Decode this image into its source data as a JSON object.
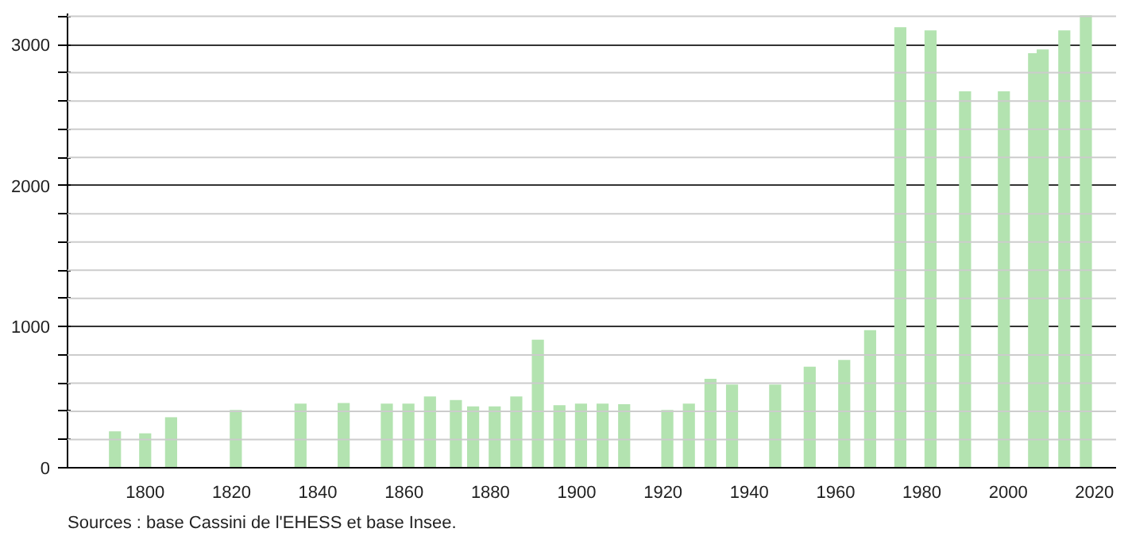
{
  "chart_data": {
    "type": "bar",
    "x": [
      1793,
      1800,
      1806,
      1821,
      1836,
      1846,
      1856,
      1861,
      1866,
      1872,
      1876,
      1881,
      1886,
      1891,
      1896,
      1901,
      1906,
      1911,
      1921,
      1926,
      1931,
      1936,
      1946,
      1954,
      1962,
      1968,
      1975,
      1982,
      1990,
      1999,
      2006,
      2008,
      2013,
      2018
    ],
    "values": [
      258,
      244,
      358,
      410,
      454,
      459,
      454,
      454,
      505,
      480,
      435,
      435,
      505,
      908,
      443,
      455,
      455,
      450,
      410,
      455,
      630,
      590,
      590,
      716,
      764,
      975,
      3123,
      3100,
      2669,
      2669,
      2938,
      2965,
      3100,
      3208
    ],
    "color": "#b3e3b0",
    "xlim": [
      1782,
      2025
    ],
    "ylim": [
      0,
      3220
    ],
    "xticks": [
      1800,
      1820,
      1840,
      1860,
      1880,
      1900,
      1920,
      1940,
      1960,
      1980,
      2000,
      2020
    ],
    "yticks": [
      0,
      {
        "value": 200,
        "label": null
      },
      {
        "value": 400,
        "label": null
      },
      {
        "value": 600,
        "label": null
      },
      {
        "value": 800,
        "label": null
      },
      1000,
      {
        "value": 1200,
        "label": null
      },
      {
        "value": 1400,
        "label": null
      },
      {
        "value": 1600,
        "label": null
      },
      {
        "value": 1800,
        "label": null
      },
      2000,
      {
        "value": 2200,
        "label": null
      },
      {
        "value": 2400,
        "label": null
      },
      {
        "value": 2600,
        "label": null
      },
      {
        "value": 2800,
        "label": null
      },
      3000,
      {
        "value": 3200,
        "label": null
      }
    ],
    "grid": "y",
    "annotations": [
      "Sources : base Cassini de l'EHESS et base Insee."
    ]
  }
}
